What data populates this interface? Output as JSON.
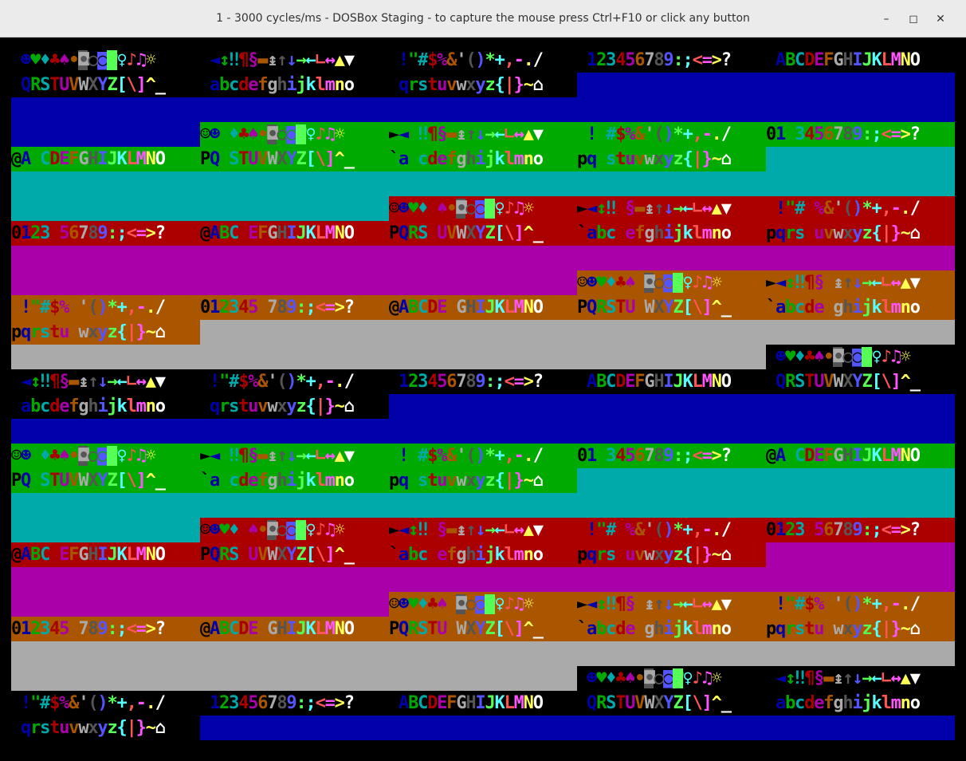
{
  "window": {
    "title": "1 - 3000 cycles/ms - DOSBox Staging - to capture the mouse press Ctrl+F10 or click any button",
    "buttons": {
      "minimize": "–",
      "maximize": "◻",
      "close": "✕"
    }
  },
  "screen": {
    "columns": 5,
    "rows": 28,
    "cell_sequence": [
      "☺☻♥♦♣♠•◘○◙♂♀♪♫☼",
      "►◄↕‼¶§▬↨↑↓→←∟↔▲▼",
      " !\"#$%&'()*+,-./",
      "0123456789:;<=>?",
      "@ABCDEFGHIJKLMNO",
      "PQRSTUVWXYZ[\\]^_",
      "`abcdefghijklmno",
      "pqrstuvwxyz{|}~⌂",
      "",
      "",
      "",
      "",
      "",
      "",
      "",
      ""
    ],
    "background_colors": [
      "#000000",
      "#0000aa",
      "#00aa00",
      "#00aaaa",
      "#aa0000",
      "#aa00aa",
      "#aa5500",
      "#aaaaaa",
      "#000000",
      "#0000aa",
      "#00aa00",
      "#00aaaa",
      "#aa0000",
      "#aa00aa",
      "#aa5500",
      "#aaaaaa"
    ],
    "text_colors": [
      "#000000",
      "#0000aa",
      "#00aa00",
      "#00aaaa",
      "#aa0000",
      "#aa00aa",
      "#aa5500",
      "#aaaaaa",
      "#555555",
      "#5555ff",
      "#55ff55",
      "#55ffff",
      "#ff5555",
      "#ff55ff",
      "#ffff55",
      "#ffffff"
    ],
    "highlight_colors": [
      "#555555",
      "#55ff55"
    ]
  }
}
